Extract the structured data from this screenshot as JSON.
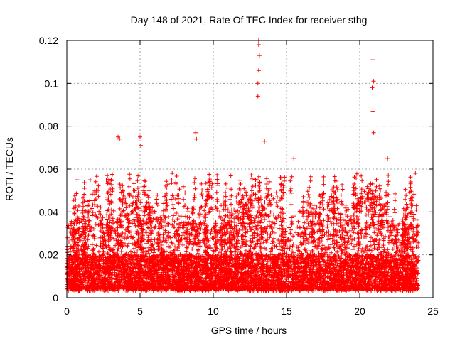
{
  "chart_data": {
    "type": "scatter",
    "title": "Day 148 of 2021, Rate Of TEC Index for receiver sthg",
    "xlabel": "GPS time / hours",
    "ylabel": "ROTI / TECUs",
    "xlim": [
      0,
      25
    ],
    "ylim": [
      0,
      0.12
    ],
    "xticks": [
      0,
      5,
      10,
      15,
      20,
      25
    ],
    "xtick_labels": [
      "0",
      "5",
      "10",
      "15",
      "20",
      "25"
    ],
    "yticks": [
      0,
      0.02,
      0.04,
      0.06,
      0.08,
      0.1,
      0.12
    ],
    "ytick_labels": [
      "0",
      "0.02",
      "0.04",
      "0.06",
      "0.08",
      "0.1",
      "0.12"
    ],
    "grid": true,
    "marker": "+",
    "color": "#ff0000",
    "series": [
      {
        "name": "ROTI",
        "data_range_x": [
          0,
          24
        ],
        "baseline_range_y": [
          0.003,
          0.02
        ],
        "notable_points": [
          {
            "x": 13.1,
            "y": 0.12
          },
          {
            "x": 13.1,
            "y": 0.118
          },
          {
            "x": 13.15,
            "y": 0.113
          },
          {
            "x": 13.1,
            "y": 0.106
          },
          {
            "x": 13.05,
            "y": 0.1
          },
          {
            "x": 13.05,
            "y": 0.094
          },
          {
            "x": 20.9,
            "y": 0.111
          },
          {
            "x": 20.95,
            "y": 0.101
          },
          {
            "x": 20.85,
            "y": 0.098
          },
          {
            "x": 20.9,
            "y": 0.087
          },
          {
            "x": 20.95,
            "y": 0.077
          },
          {
            "x": 3.5,
            "y": 0.075
          },
          {
            "x": 3.6,
            "y": 0.074
          },
          {
            "x": 5.0,
            "y": 0.075
          },
          {
            "x": 5.05,
            "y": 0.071
          },
          {
            "x": 8.8,
            "y": 0.077
          },
          {
            "x": 8.85,
            "y": 0.074
          },
          {
            "x": 13.5,
            "y": 0.073
          },
          {
            "x": 15.5,
            "y": 0.065
          },
          {
            "x": 21.9,
            "y": 0.065
          },
          {
            "x": 0.7,
            "y": 0.055
          },
          {
            "x": 1.6,
            "y": 0.055
          },
          {
            "x": 23.8,
            "y": 0.058
          }
        ]
      }
    ]
  }
}
